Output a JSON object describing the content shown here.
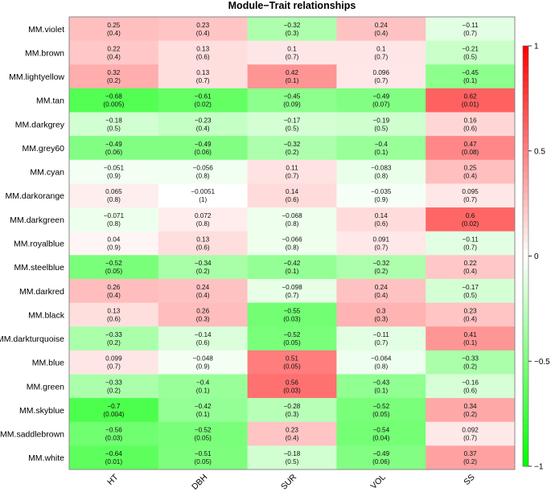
{
  "chart_data": {
    "type": "heatmap",
    "title": "Module−Trait relationships",
    "columns": [
      "HT",
      "DBH",
      "SUR",
      "VOL",
      "SS"
    ],
    "rows": [
      "MM.violet",
      "MM.brown",
      "MM.lightyellow",
      "MM.tan",
      "MM.darkgrey",
      "MM.grey60",
      "MM.cyan",
      "MM.darkorange",
      "MM.darkgreen",
      "MM.royalblue",
      "MM.steelblue",
      "MM.darkred",
      "MM.black",
      "MM.darkturquoise",
      "MM.blue",
      "MM.green",
      "MM.skyblue",
      "MM.saddlebrown",
      "MM.white"
    ],
    "values": [
      [
        "0.25",
        "0.23",
        "-0.32",
        "0.24",
        "-0.11"
      ],
      [
        "0.22",
        "0.13",
        "0.1",
        "0.1",
        "-0.21"
      ],
      [
        "0.32",
        "0.13",
        "0.42",
        "0.096",
        "-0.45"
      ],
      [
        "-0.68",
        "-0.61",
        "-0.45",
        "-0.49",
        "0.62"
      ],
      [
        "-0.18",
        "-0.23",
        "-0.17",
        "-0.19",
        "0.16"
      ],
      [
        "-0.49",
        "-0.49",
        "-0.32",
        "-0.4",
        "0.47"
      ],
      [
        "-0.051",
        "-0.056",
        "0.11",
        "-0.083",
        "0.25"
      ],
      [
        "0.065",
        "-0.0051",
        "0.14",
        "-0.035",
        "0.095"
      ],
      [
        "-0.071",
        "0.072",
        "-0.068",
        "0.14",
        "0.6"
      ],
      [
        "0.04",
        "0.13",
        "-0.066",
        "0.091",
        "-0.11"
      ],
      [
        "-0.52",
        "-0.34",
        "-0.42",
        "-0.32",
        "0.22"
      ],
      [
        "0.26",
        "0.24",
        "-0.098",
        "0.24",
        "-0.17"
      ],
      [
        "0.13",
        "0.26",
        "-0.55",
        "0.3",
        "0.23"
      ],
      [
        "-0.33",
        "-0.14",
        "-0.52",
        "-0.11",
        "0.41"
      ],
      [
        "0.099",
        "-0.048",
        "0.51",
        "-0.064",
        "-0.33"
      ],
      [
        "-0.33",
        "-0.4",
        "0.56",
        "-0.43",
        "-0.16"
      ],
      [
        "-0.7",
        "-0.42",
        "-0.28",
        "-0.52",
        "0.34"
      ],
      [
        "-0.56",
        "-0.52",
        "0.23",
        "-0.54",
        "0.092"
      ],
      [
        "-0.64",
        "-0.51",
        "-0.18",
        "-0.49",
        "0.37"
      ]
    ],
    "pvalues": [
      [
        "0.4",
        "0.4",
        "0.3",
        "0.4",
        "0.7"
      ],
      [
        "0.4",
        "0.6",
        "0.7",
        "0.7",
        "0.5"
      ],
      [
        "0.2",
        "0.7",
        "0.1",
        "0.7",
        "0.1"
      ],
      [
        "0.005",
        "0.02",
        "0.09",
        "0.07",
        "0.01"
      ],
      [
        "0.5",
        "0.4",
        "0.5",
        "0.5",
        "0.6"
      ],
      [
        "0.06",
        "0.06",
        "0.2",
        "0.1",
        "0.08"
      ],
      [
        "0.9",
        "0.8",
        "0.7",
        "0.8",
        "0.4"
      ],
      [
        "0.8",
        "1",
        "0.6",
        "0.9",
        "0.7"
      ],
      [
        "0.8",
        "0.8",
        "0.8",
        "0.6",
        "0.02"
      ],
      [
        "0.9",
        "0.6",
        "0.8",
        "0.7",
        "0.7"
      ],
      [
        "0.05",
        "0.2",
        "0.1",
        "0.2",
        "0.4"
      ],
      [
        "0.4",
        "0.4",
        "0.7",
        "0.4",
        "0.5"
      ],
      [
        "0.6",
        "0.3",
        "0.03",
        "0.3",
        "0.4"
      ],
      [
        "0.2",
        "0.6",
        "0.05",
        "0.7",
        "0.1"
      ],
      [
        "0.7",
        "0.9",
        "0.05",
        "0.8",
        "0.2"
      ],
      [
        "0.2",
        "0.1",
        "0.03",
        "0.1",
        "0.6"
      ],
      [
        "0.004",
        "0.1",
        "0.3",
        "0.05",
        "0.2"
      ],
      [
        "0.03",
        "0.05",
        "0.4",
        "0.04",
        "0.7"
      ],
      [
        "0.01",
        "0.05",
        "0.5",
        "0.06",
        "0.2"
      ]
    ],
    "colorbar": {
      "range": [
        -1,
        1
      ],
      "ticks": [
        "1",
        "0.5",
        "0",
        "−0.5",
        "−1"
      ],
      "tick_values": [
        1,
        0.5,
        0,
        -0.5,
        -1
      ]
    },
    "colors": {
      "low": "#00ff00",
      "mid": "#ffffff",
      "high": "#ff0000"
    }
  }
}
